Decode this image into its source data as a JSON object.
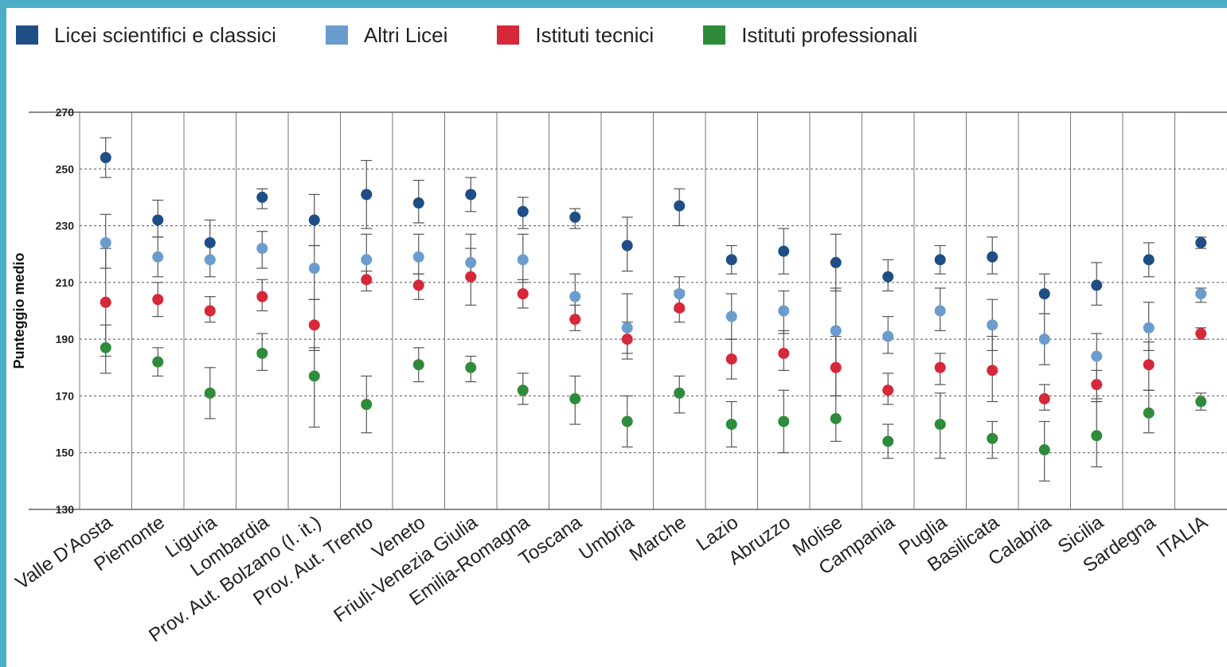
{
  "chart_data": {
    "type": "scatter",
    "subtype": "dot-with-error-bars",
    "ylabel": "Punteggio medio",
    "ylim": [
      130,
      270
    ],
    "yticks": [
      130,
      150,
      170,
      190,
      210,
      230,
      250,
      270
    ],
    "grid": "horizontal dashed",
    "legend_position": "top",
    "categories": [
      "Valle D'Aosta",
      "Piemonte",
      "Liguria",
      "Lombardia",
      "Prov. Aut. Bolzano (I. it.)",
      "Prov. Aut. Trento",
      "Veneto",
      "Friuli-Venezia Giulia",
      "Emilia-Romagna",
      "Toscana",
      "Umbria",
      "Marche",
      "Lazio",
      "Abruzzo",
      "Molise",
      "Campania",
      "Puglia",
      "Basilicata",
      "Calabria",
      "Sicilia",
      "Sardegna",
      "ITALIA"
    ],
    "series": [
      {
        "name": "Licei scientifici e classici",
        "color": "#1f4e86",
        "values": [
          254,
          232,
          224,
          240,
          232,
          241,
          238,
          241,
          235,
          233,
          223,
          237,
          218,
          221,
          217,
          212,
          218,
          219,
          206,
          209,
          218,
          224
        ],
        "low": [
          247,
          226,
          218,
          236,
          223,
          229,
          231,
          235,
          229,
          229,
          214,
          230,
          213,
          213,
          207,
          207,
          213,
          213,
          199,
          202,
          212,
          222
        ],
        "high": [
          261,
          239,
          232,
          243,
          241,
          253,
          246,
          247,
          240,
          236,
          233,
          243,
          223,
          229,
          227,
          218,
          223,
          226,
          213,
          217,
          224,
          226
        ]
      },
      {
        "name": "Altri Licei",
        "color": "#6a9ccd",
        "values": [
          224,
          219,
          218,
          222,
          215,
          218,
          219,
          217,
          218,
          205,
          194,
          206,
          198,
          200,
          193,
          191,
          200,
          195,
          190,
          184,
          194,
          206
        ],
        "low": [
          215,
          212,
          212,
          215,
          204,
          210,
          213,
          212,
          210,
          197,
          183,
          200,
          190,
          192,
          170,
          185,
          193,
          186,
          181,
          168,
          186,
          203
        ],
        "high": [
          234,
          226,
          224,
          228,
          223,
          227,
          227,
          227,
          227,
          213,
          206,
          212,
          206,
          207,
          208,
          198,
          208,
          204,
          199,
          192,
          203,
          208
        ]
      },
      {
        "name": "Istituti tecnici",
        "color": "#d62839",
        "values": [
          203,
          204,
          200,
          205,
          195,
          211,
          209,
          212,
          206,
          197,
          190,
          201,
          183,
          185,
          180,
          172,
          180,
          179,
          169,
          174,
          181,
          192
        ],
        "low": [
          184,
          198,
          196,
          200,
          186,
          207,
          204,
          202,
          201,
          193,
          185,
          196,
          176,
          179,
          170,
          167,
          174,
          168,
          165,
          169,
          172,
          190
        ],
        "high": [
          222,
          210,
          205,
          211,
          204,
          214,
          213,
          222,
          211,
          202,
          196,
          207,
          190,
          193,
          191,
          178,
          185,
          191,
          174,
          179,
          189,
          194
        ]
      },
      {
        "name": "Istituti professionali",
        "color": "#2e8b3a",
        "values": [
          187,
          182,
          171,
          185,
          177,
          167,
          181,
          180,
          172,
          169,
          161,
          171,
          160,
          161,
          162,
          154,
          160,
          155,
          151,
          156,
          164,
          168
        ],
        "low": [
          178,
          177,
          162,
          179,
          159,
          157,
          175,
          175,
          167,
          160,
          152,
          164,
          152,
          150,
          154,
          148,
          148,
          148,
          140,
          145,
          157,
          165
        ],
        "high": [
          195,
          187,
          180,
          192,
          187,
          177,
          187,
          184,
          178,
          177,
          170,
          177,
          168,
          172,
          170,
          160,
          171,
          161,
          161,
          168,
          172,
          171
        ]
      }
    ]
  }
}
